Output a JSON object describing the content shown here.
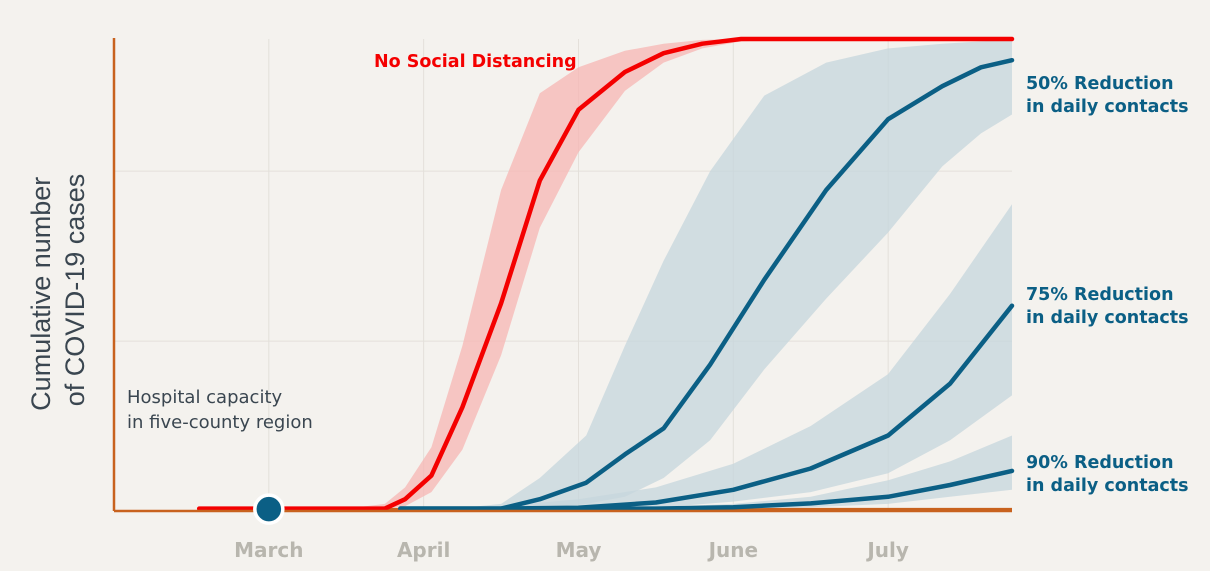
{
  "chart_data": {
    "type": "line",
    "ylabel_lines": [
      "Cumulative number",
      "of COVID-19 cases"
    ],
    "xlim": [
      0,
      5.8
    ],
    "ylim": [
      0,
      100
    ],
    "ticks": [
      {
        "label": "March",
        "x": 1
      },
      {
        "label": "April",
        "x": 2
      },
      {
        "label": "May",
        "x": 3
      },
      {
        "label": "June",
        "x": 4
      },
      {
        "label": "July",
        "x": 5
      }
    ],
    "grid_y": [
      36,
      72
    ],
    "grid": true,
    "capacity": {
      "label_lines": [
        "Hospital capacity",
        "in five-county region"
      ],
      "y": 0.4,
      "x_start": 0.55,
      "color": "#c8621e"
    },
    "marker": {
      "x": 1,
      "y": 0.4,
      "color": "#0b5f85"
    },
    "series": [
      {
        "name": "No Social Distancing",
        "label_lines": [
          "No Social Distancing"
        ],
        "color": "#f40000",
        "band_color": "#f7b6b3",
        "x": [
          0.55,
          1,
          1.5,
          1.75,
          1.88,
          2.05,
          2.25,
          2.5,
          2.75,
          3.0,
          3.3,
          3.55,
          3.8,
          4.05,
          4.4,
          4.8,
          5.3,
          5.8
        ],
        "y": [
          0.5,
          0.5,
          0.5,
          0.5,
          2.5,
          7.5,
          22,
          44,
          70,
          85,
          93,
          97,
          99,
          100,
          100,
          100,
          100,
          100
        ],
        "lower": [
          0.5,
          0.5,
          0.5,
          0.5,
          1,
          4,
          13,
          33,
          60,
          76,
          89,
          95,
          98,
          99.5,
          100,
          100,
          100,
          100
        ],
        "upper": [
          0.5,
          0.5,
          0.5,
          1.5,
          5,
          13.5,
          35,
          68,
          88.5,
          94,
          97.5,
          99,
          99.8,
          100,
          100,
          100,
          100,
          100
        ]
      },
      {
        "name": "50% Reduction in daily contacts",
        "label_lines": [
          "50% Reduction",
          "in daily contacts"
        ],
        "color": "#0b5f85",
        "band_color": "#c5d6dc",
        "x": [
          1.85,
          2.2,
          2.5,
          2.75,
          3.05,
          3.3,
          3.55,
          3.85,
          4.2,
          4.6,
          5.0,
          5.35,
          5.6,
          5.8
        ],
        "y": [
          0.5,
          0.5,
          0.5,
          2.5,
          6,
          12,
          17.5,
          31,
          49,
          68,
          83,
          90,
          94,
          95.5
        ],
        "lower": [
          0.5,
          0.5,
          0.5,
          0.5,
          1.5,
          3,
          7,
          15,
          30,
          45,
          59,
          73,
          80,
          84
        ],
        "upper": [
          0.5,
          0.5,
          1.5,
          7,
          16,
          35,
          53,
          72,
          88,
          95,
          98,
          99,
          99.5,
          100
        ]
      },
      {
        "name": "75% Reduction in daily contacts",
        "label_lines": [
          "75% Reduction",
          "in daily contacts"
        ],
        "color": "#0b5f85",
        "band_color": "#c5d6dc",
        "x": [
          1.85,
          2.2,
          2.5,
          3.0,
          3.5,
          4.0,
          4.5,
          5.0,
          5.4,
          5.8
        ],
        "y": [
          0.5,
          0.5,
          0.5,
          0.7,
          1.8,
          4.5,
          9,
          16,
          27,
          43.5
        ],
        "lower": [
          0.5,
          0.5,
          0.5,
          0.5,
          0.7,
          2,
          4,
          8,
          15,
          24.5
        ],
        "upper": [
          0.5,
          0.5,
          1,
          2.5,
          5,
          10,
          18,
          29,
          46,
          65
        ]
      },
      {
        "name": "90% Reduction in daily contacts",
        "label_lines": [
          "90% Reduction",
          "in daily contacts"
        ],
        "color": "#0b5f85",
        "band_color": "#c5d6dc",
        "x": [
          1.85,
          2.5,
          3.0,
          3.5,
          4.0,
          4.5,
          5.0,
          5.4,
          5.8
        ],
        "y": [
          0.5,
          0.5,
          0.5,
          0.5,
          0.8,
          1.6,
          3,
          5.5,
          8.5
        ],
        "lower": [
          0.5,
          0.5,
          0.5,
          0.5,
          0.5,
          0.8,
          1.5,
          3,
          4.5
        ],
        "upper": [
          0.5,
          0.5,
          0.5,
          0.8,
          1.5,
          3,
          6.5,
          10.5,
          16
        ]
      }
    ]
  }
}
